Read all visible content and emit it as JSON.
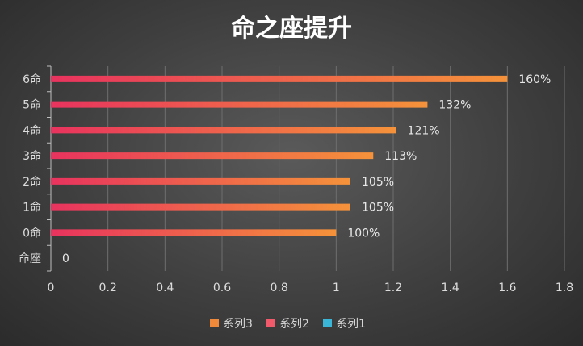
{
  "chart_data": {
    "type": "bar",
    "orientation": "horizontal",
    "title": "命之座提升",
    "categories": [
      "命座",
      "0命",
      "1命",
      "2命",
      "3命",
      "4命",
      "5命",
      "6命"
    ],
    "series": [
      {
        "name": "系列3",
        "values": [
          0,
          1.0,
          1.05,
          1.05,
          1.13,
          1.21,
          1.32,
          1.6
        ],
        "color": "#f08a3a"
      },
      {
        "name": "系列2",
        "values": [
          0,
          0,
          0,
          0,
          0,
          0,
          0,
          0
        ],
        "color": "#f05a6a"
      },
      {
        "name": "系列1",
        "values": [
          0,
          0,
          0,
          0,
          0,
          0,
          0,
          0
        ],
        "color": "#3ab6d8"
      }
    ],
    "data_labels": [
      "0",
      "100%",
      "105%",
      "105%",
      "113%",
      "121%",
      "132%",
      "160%"
    ],
    "xlim": [
      0,
      1.8
    ],
    "xticks": [
      "0",
      "0.2",
      "0.4",
      "0.6",
      "0.8",
      "1",
      "1.2",
      "1.4",
      "1.6",
      "1.8"
    ],
    "grid": true,
    "legend": "bottom",
    "gradient_start": "#e8335e",
    "gradient_end": "#f5923a"
  }
}
